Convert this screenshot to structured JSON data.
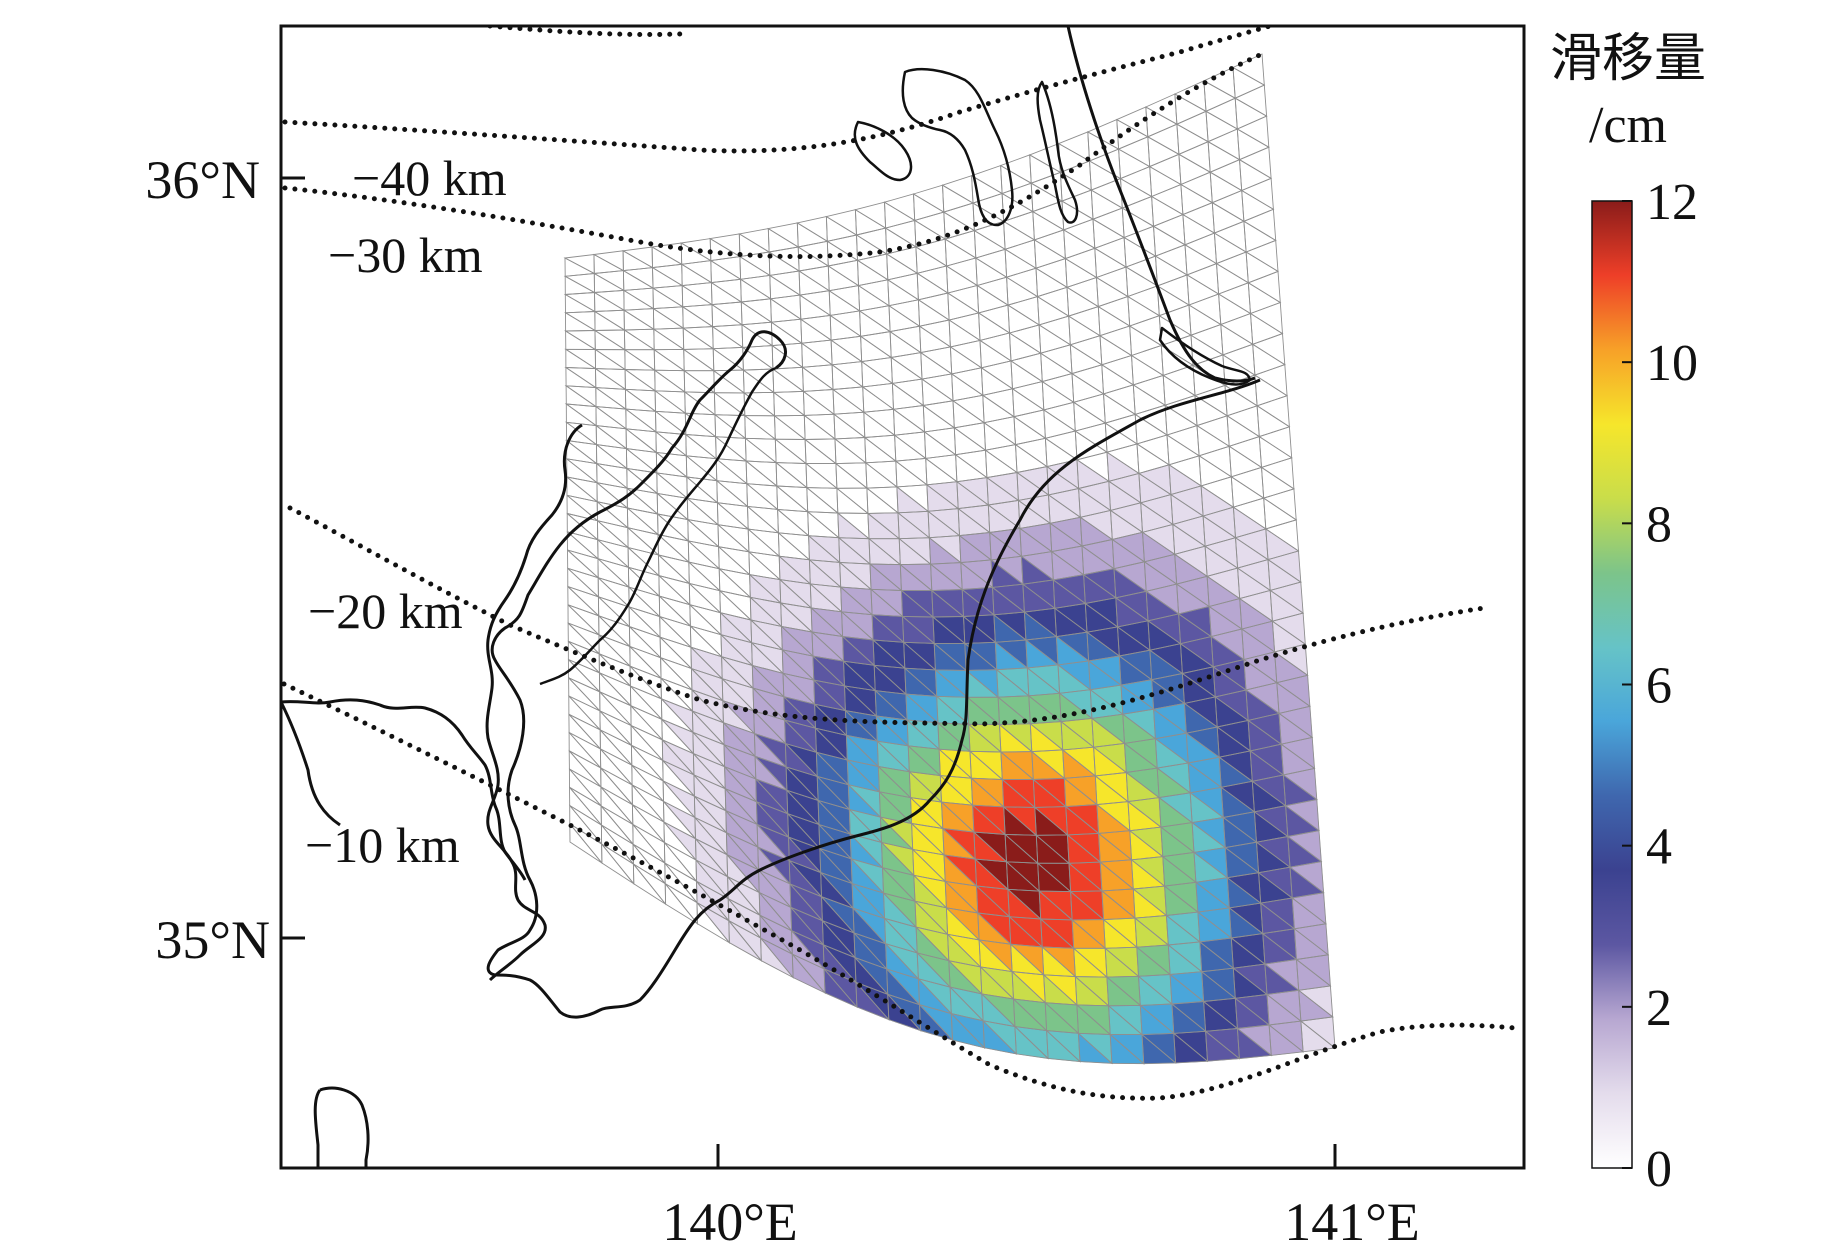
{
  "map": {
    "lat_axis": {
      "ticks": [
        {
          "value": 36,
          "label": "36°N"
        },
        {
          "value": 35,
          "label": "35°N"
        }
      ]
    },
    "lon_axis": {
      "ticks": [
        {
          "value": 140,
          "label": "140°E"
        },
        {
          "value": 141,
          "label": "141°E"
        }
      ]
    },
    "depth_contours": [
      {
        "depth": -40,
        "label": "−40 km"
      },
      {
        "depth": -30,
        "label": "−30 km"
      },
      {
        "depth": -20,
        "label": "−20 km"
      },
      {
        "depth": -10,
        "label": "−10 km"
      }
    ],
    "slip_peak_cm": 12,
    "colorbar": {
      "title_line1": "滑移量",
      "title_line2": "/cm",
      "min": 0,
      "max": 12,
      "ticks": [
        {
          "value": 12,
          "label": "12"
        },
        {
          "value": 10,
          "label": "10"
        },
        {
          "value": 8,
          "label": "8"
        },
        {
          "value": 6,
          "label": "6"
        },
        {
          "value": 4,
          "label": "4"
        },
        {
          "value": 2,
          "label": "2"
        },
        {
          "value": 0,
          "label": "0"
        }
      ],
      "colors": [
        "#ffffff",
        "#e4dcec",
        "#b7a7d1",
        "#5c57a2",
        "#3b4290",
        "#3f67ae",
        "#4aa6da",
        "#66c3c7",
        "#7cc48a",
        "#c9dd4a",
        "#f6e62b",
        "#f7a128",
        "#ee3f28",
        "#8a1c1a"
      ]
    }
  }
}
